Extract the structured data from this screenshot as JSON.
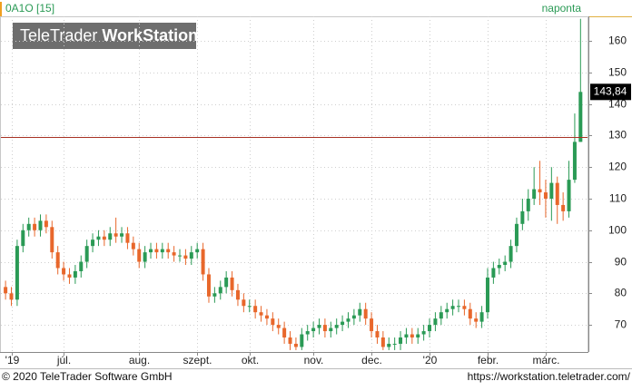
{
  "chart_data": {
    "type": "candlestick",
    "header": "0A1O [15]",
    "period": "naponta",
    "watermark_light": "TeleTrader",
    "watermark_bold": "WorkStation",
    "footer_left": "© 2020 TeleTrader Software GmbH",
    "footer_right": "https://workstation.teletrader.com/",
    "up_color": "#2a9a55",
    "down_color": "#e8672b",
    "line_color": "#a83224",
    "line_value": 129.5,
    "price_label": {
      "value": 143.84,
      "label": "143,84"
    },
    "ylim": [
      61.4,
      167.8
    ],
    "yticks": [
      70,
      80,
      90,
      100,
      110,
      120,
      130,
      140,
      150,
      160
    ],
    "grid": true,
    "xlim": [
      -0.8,
      100.2
    ],
    "xticks": [
      {
        "value": 1,
        "label": "'19"
      },
      {
        "value": 10,
        "label": "júl."
      },
      {
        "value": 23,
        "label": "aug."
      },
      {
        "value": 33,
        "label": "szept."
      },
      {
        "value": 42,
        "label": "okt."
      },
      {
        "value": 53,
        "label": "nov."
      },
      {
        "value": 63,
        "label": "dec."
      },
      {
        "value": 73,
        "label": "'20"
      },
      {
        "value": 83,
        "label": "febr."
      },
      {
        "value": 93,
        "label": "márc."
      }
    ],
    "open": [
      82,
      80,
      78,
      95,
      100,
      102,
      100,
      103,
      101,
      93,
      88,
      86,
      85,
      87,
      90,
      95,
      97,
      98,
      97,
      99,
      98,
      99,
      96,
      94,
      90,
      93,
      94,
      93,
      94,
      93,
      92,
      92,
      91,
      93,
      94,
      86,
      79,
      80,
      82,
      85,
      81,
      78,
      76,
      76,
      74,
      73,
      72,
      70,
      69,
      66,
      64,
      63,
      67,
      68,
      69,
      70,
      68,
      69,
      70,
      71,
      72,
      73,
      75,
      72,
      68,
      66,
      63,
      64,
      64,
      66,
      67,
      66,
      67,
      68,
      70,
      72,
      74,
      75,
      76,
      76,
      75,
      72,
      71,
      74,
      85,
      88,
      89,
      90,
      95,
      102,
      106,
      110,
      113,
      112,
      110,
      115,
      108,
      106,
      116,
      128
    ],
    "close": [
      80,
      78,
      95,
      100,
      102,
      100,
      103,
      101,
      93,
      88,
      86,
      85,
      87,
      90,
      95,
      97,
      98,
      97,
      99,
      98,
      99,
      96,
      94,
      90,
      93,
      94,
      93,
      94,
      93,
      92,
      92,
      91,
      93,
      94,
      86,
      79,
      80,
      82,
      85,
      81,
      78,
      76,
      76,
      74,
      73,
      72,
      70,
      69,
      66,
      64,
      63,
      67,
      68,
      69,
      70,
      68,
      69,
      70,
      71,
      72,
      73,
      75,
      72,
      68,
      66,
      63,
      64,
      64,
      66,
      67,
      66,
      67,
      68,
      70,
      72,
      74,
      75,
      76,
      76,
      75,
      72,
      71,
      74,
      85,
      88,
      89,
      90,
      95,
      102,
      106,
      110,
      113,
      112,
      110,
      115,
      108,
      106,
      116,
      128,
      143.84
    ],
    "high": [
      84,
      82,
      97,
      102,
      104,
      104,
      105,
      105,
      103,
      95,
      90,
      88,
      89,
      92,
      97,
      99,
      100,
      100,
      101,
      104,
      101,
      101,
      98,
      96,
      95,
      96,
      96,
      96,
      96,
      95,
      94,
      94,
      95,
      96,
      96,
      88,
      82,
      84,
      87,
      87,
      83,
      80,
      78,
      78,
      76,
      75,
      74,
      72,
      71,
      68,
      66,
      69,
      70,
      71,
      72,
      72,
      71,
      72,
      73,
      74,
      75,
      77,
      77,
      74,
      70,
      68,
      66,
      66,
      68,
      69,
      69,
      69,
      70,
      72,
      74,
      76,
      77,
      78,
      78,
      78,
      77,
      74,
      76,
      88,
      90,
      91,
      92,
      97,
      104,
      110,
      113,
      120,
      122,
      116,
      120,
      117,
      112,
      122,
      137,
      167
    ],
    "low": [
      78,
      76,
      76,
      93,
      98,
      98,
      98,
      99,
      91,
      86,
      84,
      83,
      83,
      85,
      88,
      93,
      95,
      95,
      95,
      96,
      96,
      94,
      92,
      88,
      88,
      91,
      91,
      91,
      91,
      90,
      90,
      89,
      89,
      91,
      84,
      77,
      77,
      78,
      80,
      79,
      76,
      74,
      74,
      72,
      71,
      70,
      68,
      67,
      64,
      62,
      62,
      62,
      65,
      66,
      67,
      66,
      66,
      67,
      68,
      69,
      70,
      71,
      70,
      66,
      64,
      62,
      62,
      62,
      62,
      64,
      64,
      64,
      65,
      66,
      68,
      70,
      72,
      73,
      74,
      73,
      70,
      69,
      69,
      72,
      83,
      86,
      87,
      88,
      93,
      100,
      103,
      108,
      108,
      104,
      103,
      102,
      103,
      104,
      115,
      128
    ]
  }
}
